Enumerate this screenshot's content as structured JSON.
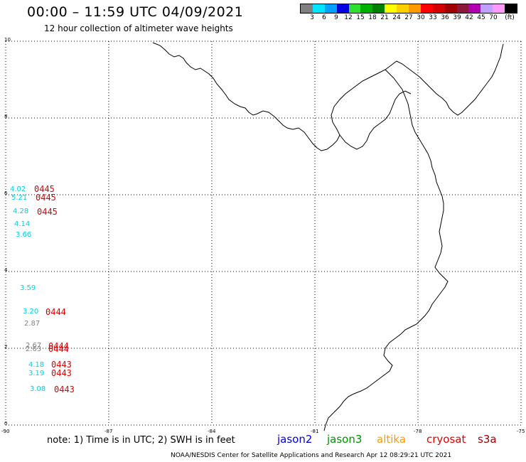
{
  "header": {
    "title": "00:00  – 11:59 UTC 04/09/2021",
    "subtitle": "12 hour collection of altimeter wave heights"
  },
  "legend": {
    "swatches": [
      "#808080",
      "#00e5ff",
      "#00a0ff",
      "#0000e0",
      "#30e030",
      "#00b000",
      "#008000",
      "#ffff00",
      "#ffd000",
      "#ff9900",
      "#ff0000",
      "#d40000",
      "#a00000",
      "#8b1a3a",
      "#b000b0",
      "#c0a0ff",
      "#ff99ff",
      "#000000"
    ],
    "labels": [
      "3",
      "6",
      "9",
      "12",
      "15",
      "18",
      "21",
      "24",
      "27",
      "30",
      "33",
      "36",
      "39",
      "42",
      "45",
      "70",
      "(ft)"
    ]
  },
  "axes": {
    "x_ticks": [
      "-90",
      "-87",
      "-84",
      "-81",
      "-78",
      "-75"
    ],
    "y_ticks": [
      "0",
      "2",
      "4",
      "6",
      "8",
      "10"
    ]
  },
  "observations": [
    {
      "text": "4.02",
      "color": "#00d0e0",
      "cycle": "0445"
    },
    {
      "text": "5.21",
      "color": "#00d0e0",
      "cycle": "0445"
    },
    {
      "text": "4.28",
      "color": "#00d0e0",
      "cycle": "0445"
    },
    {
      "text": "4.14",
      "color": "#00d0e0",
      "cycle": ""
    },
    {
      "text": "3.66",
      "color": "#00d0e0",
      "cycle": ""
    },
    {
      "text": "3.59",
      "color": "#00d0e0",
      "cycle": ""
    },
    {
      "text": "3.20",
      "color": "#00d0e0",
      "cycle": "0444"
    },
    {
      "text": "2.87",
      "color": "#808080",
      "cycle": ""
    },
    {
      "text": "2.67",
      "color": "#808080",
      "cycle": "0444"
    },
    {
      "text": "2.63",
      "color": "#808080",
      "cycle": "0444"
    },
    {
      "text": "4.18",
      "color": "#00d0e0",
      "cycle": "0443"
    },
    {
      "text": "3.19",
      "color": "#00d0e0",
      "cycle": "0443"
    },
    {
      "text": "3.08",
      "color": "#00d0e0",
      "cycle": "0443"
    }
  ],
  "cycle_color": "#e00000",
  "footer": {
    "note": "note:  1) Time is in UTC;  2) SWH is in feet",
    "missions": [
      {
        "name": "jason2",
        "color": "#0000e0"
      },
      {
        "name": "jason3",
        "color": "#009000"
      },
      {
        "name": "altika",
        "color": "#ff9900"
      },
      {
        "name": "cryosat",
        "color": "#e00000"
      },
      {
        "name": "s3a",
        "color": "#a00000"
      }
    ],
    "credit": "NOAA/NESDIS Center for Satellite Applications and Research    Apr 12 08:29:21 UTC 2021"
  }
}
